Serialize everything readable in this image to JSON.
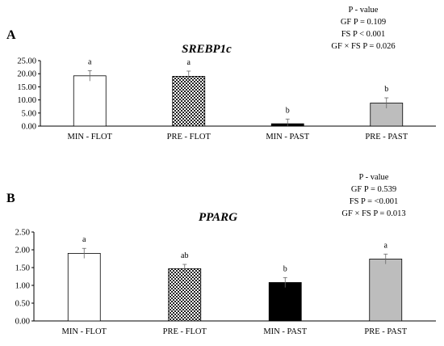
{
  "chart_data": [
    {
      "type": "bar",
      "panel_label": "A",
      "title": "SREBP1c",
      "stats": [
        "P - value",
        "GF P = 0.109",
        "FS P < 0.001",
        "GF × FS P = 0.026"
      ],
      "categories": [
        "MIN - FLOT",
        "PRE  - FLOT",
        "MIN - PAST",
        "PRE  -  PAST"
      ],
      "values": [
        19.2,
        19.0,
        0.9,
        8.8
      ],
      "errors": [
        2.0,
        2.0,
        1.8,
        2.0
      ],
      "letters": [
        "a",
        "a",
        "b",
        "b"
      ],
      "fills": [
        "white",
        "checker",
        "black",
        "gray"
      ],
      "ylim": [
        0,
        25
      ],
      "yticks": [
        "0.00",
        "5.00",
        "10.00",
        "15.00",
        "20.00",
        "25.00"
      ],
      "grid": false
    },
    {
      "type": "bar",
      "panel_label": "B",
      "title": "PPARG",
      "stats": [
        "P - value",
        "GF P = 0.539",
        "FS P = <0.001",
        "GF × FS P = 0.013"
      ],
      "categories": [
        "MIN - FLOT",
        "PRE  - FLOT",
        "MIN - PAST",
        "PRE  -  PAST"
      ],
      "values": [
        1.9,
        1.47,
        1.08,
        1.74
      ],
      "errors": [
        0.14,
        0.12,
        0.14,
        0.14
      ],
      "letters": [
        "a",
        "ab",
        "b",
        "a"
      ],
      "fills": [
        "white",
        "checker",
        "black",
        "gray"
      ],
      "ylim": [
        0,
        2.5
      ],
      "yticks": [
        "0.00",
        "0.50",
        "1.00",
        "1.50",
        "2.00",
        "2.50"
      ],
      "grid": false
    }
  ]
}
